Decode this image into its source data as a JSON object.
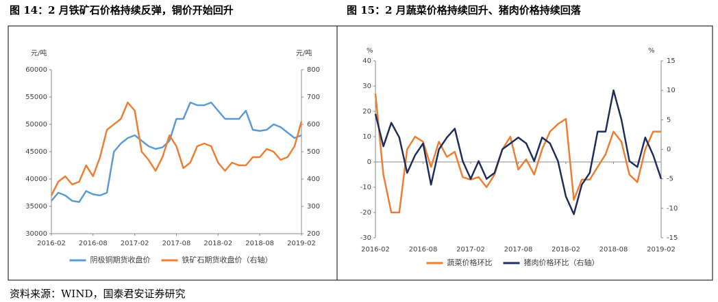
{
  "chart_data": [
    {
      "type": "line",
      "title": "图 14：2 月铁矿石价格持续反弹，铜价开始回升",
      "ylabel": "元/吨",
      "y2label": "元/吨",
      "categories": [
        "2016-02",
        null,
        null,
        null,
        null,
        null,
        "2016-08",
        null,
        null,
        null,
        null,
        null,
        "2017-02",
        null,
        null,
        null,
        null,
        null,
        "2017-08",
        null,
        null,
        null,
        null,
        null,
        "2018-02",
        null,
        null,
        null,
        null,
        null,
        "2018-08",
        null,
        null,
        null,
        null,
        null,
        "2019-02"
      ],
      "series": [
        {
          "name": "阴极铜期货收盘价",
          "color": "#5b9bd5",
          "values": [
            36000,
            37500,
            37000,
            36000,
            35800,
            37800,
            37200,
            37000,
            37500,
            45000,
            46500,
            47500,
            48000,
            47000,
            46000,
            45500,
            45800,
            47000,
            51000,
            51000,
            54000,
            53500,
            53500,
            54000,
            52500,
            51000,
            51000,
            51000,
            52500,
            49000,
            48800,
            49000,
            50000,
            49500,
            48500,
            47500,
            48000
          ]
        },
        {
          "name": "铁矿石期货收盘价（右轴）",
          "color": "#ed7d31",
          "axis": "y2",
          "values": [
            340,
            390,
            410,
            380,
            390,
            450,
            410,
            480,
            580,
            600,
            620,
            680,
            650,
            500,
            470,
            430,
            480,
            560,
            520,
            440,
            460,
            520,
            530,
            520,
            460,
            430,
            460,
            450,
            450,
            480,
            480,
            510,
            500,
            470,
            480,
            520,
            610
          ]
        }
      ],
      "ylim": [
        30000,
        60000
      ],
      "yticks": [
        30000,
        35000,
        40000,
        45000,
        50000,
        55000,
        60000
      ],
      "y2lim": [
        200,
        800
      ],
      "y2ticks": [
        200,
        300,
        400,
        500,
        600,
        700,
        800
      ],
      "legend": "bottom"
    },
    {
      "type": "line",
      "title": "图 15：2 月蔬菜价格持续回升、猪肉价格持续回落",
      "ylabel": "%",
      "y2label": "%",
      "categories": [
        "2016-02",
        null,
        null,
        null,
        null,
        null,
        "2016-08",
        null,
        null,
        null,
        null,
        null,
        "2017-02",
        null,
        null,
        null,
        null,
        null,
        "2017-08",
        null,
        null,
        null,
        null,
        null,
        "2018-02",
        null,
        null,
        null,
        null,
        null,
        "2018-08",
        null,
        null,
        null,
        null,
        null,
        "2019-02"
      ],
      "series": [
        {
          "name": "蔬菜价格环比",
          "color": "#ed7d31",
          "values": [
            27,
            -5,
            -20,
            -20,
            5,
            10,
            8,
            -2,
            8,
            2,
            4,
            -6,
            -7,
            -6,
            -10,
            -5,
            5,
            10,
            -3,
            1,
            -5,
            5,
            12,
            15,
            17,
            -15,
            -7,
            -7,
            -2,
            3,
            12,
            8,
            -5,
            -8,
            5,
            12,
            12
          ]
        },
        {
          "name": "猪肉价格环比（右轴）",
          "color": "#1f2d5c",
          "axis": "y2",
          "values": [
            6,
            0.5,
            4.5,
            2,
            -4,
            -1,
            1,
            -6,
            0,
            2,
            3.5,
            -2,
            -5,
            -2,
            -5,
            -4,
            0,
            1,
            2,
            1,
            -2,
            2,
            1,
            -2,
            -8,
            -11,
            -6,
            -4,
            3,
            3,
            10,
            5,
            -2,
            -3,
            2,
            -1,
            -5
          ]
        }
      ],
      "ylim": [
        -30,
        40
      ],
      "yticks": [
        -30,
        -20,
        -10,
        0,
        10,
        20,
        30,
        40
      ],
      "y2lim": [
        -15,
        15
      ],
      "y2ticks": [
        -15,
        -10,
        -5,
        0,
        5,
        10,
        15
      ],
      "legend": "bottom"
    }
  ],
  "source": "资料来源：WIND，国泰君安证券研究"
}
